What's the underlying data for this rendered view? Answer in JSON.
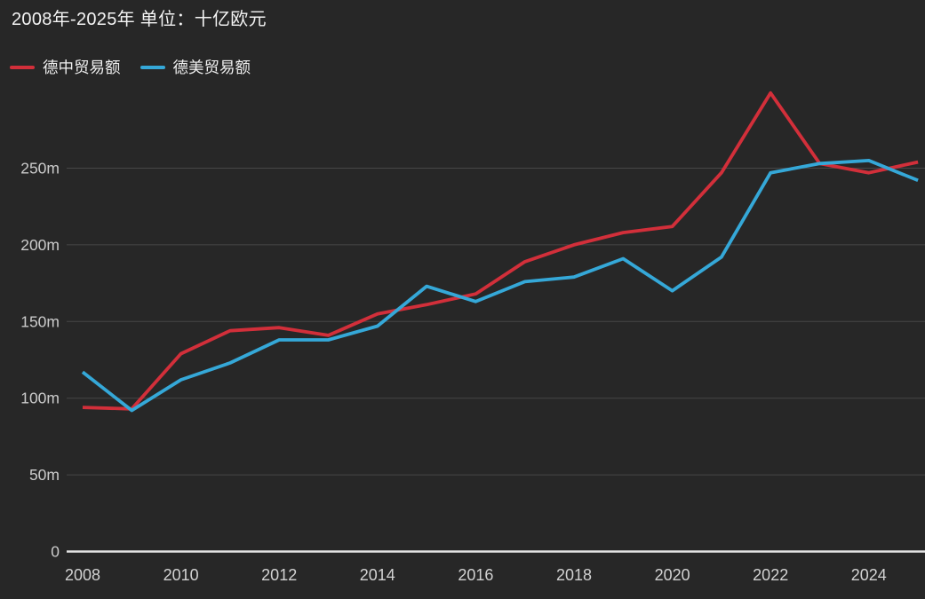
{
  "page": {
    "background": "#272727"
  },
  "header": {
    "title": "2008年-2025年 单位：十亿欧元"
  },
  "legend": {
    "items": [
      {
        "label": "德中贸易额",
        "color": "#d22f3a"
      },
      {
        "label": "德美贸易额",
        "color": "#35a8d8"
      }
    ]
  },
  "chart_data": {
    "type": "line",
    "title": "2008年-2025年 单位：十亿欧元",
    "x": [
      2008,
      2009,
      2010,
      2011,
      2012,
      2013,
      2014,
      2015,
      2016,
      2017,
      2018,
      2019,
      2020,
      2021,
      2022,
      2023,
      2024,
      2025
    ],
    "series": [
      {
        "name": "德中贸易额",
        "color": "#d22f3a",
        "values": [
          94,
          93,
          129,
          144,
          146,
          141,
          155,
          161,
          168,
          189,
          200,
          208,
          212,
          247,
          299,
          253,
          247,
          254
        ]
      },
      {
        "name": "德美贸易额",
        "color": "#35a8d8",
        "values": [
          117,
          92,
          112,
          123,
          138,
          138,
          147,
          173,
          163,
          176,
          179,
          191,
          170,
          192,
          247,
          253,
          255,
          242
        ]
      }
    ],
    "y_ticks": [
      {
        "value": 0,
        "label": "0"
      },
      {
        "value": 50,
        "label": "50m"
      },
      {
        "value": 100,
        "label": "100m"
      },
      {
        "value": 150,
        "label": "150m"
      },
      {
        "value": 200,
        "label": "200m"
      },
      {
        "value": 250,
        "label": "250m"
      }
    ],
    "x_ticks": [
      {
        "value": 2008,
        "label": "2008"
      },
      {
        "value": 2010,
        "label": "2010"
      },
      {
        "value": 2012,
        "label": "2012"
      },
      {
        "value": 2014,
        "label": "2014"
      },
      {
        "value": 2016,
        "label": "2016"
      },
      {
        "value": 2018,
        "label": "2018"
      },
      {
        "value": 2020,
        "label": "2020"
      },
      {
        "value": 2022,
        "label": "2022"
      },
      {
        "value": 2024,
        "label": "2024"
      }
    ],
    "xlabel": "",
    "ylabel": "",
    "ylim": [
      0,
      305
    ],
    "grid": true,
    "legend_position": "top-left",
    "colors": {
      "grid": "#474747",
      "axis": "#e3e3e3",
      "tick_text": "#cbcbcb",
      "x_tick_text": "#d2d2d2",
      "title_text": "#f4f4f4",
      "background": "#272727"
    }
  }
}
